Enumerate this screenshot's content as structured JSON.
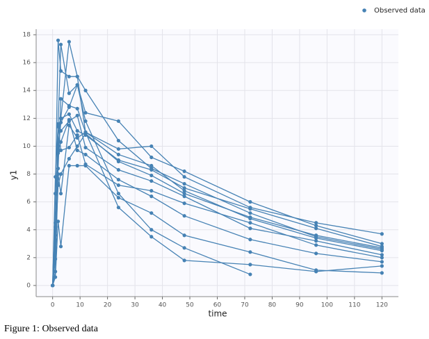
{
  "chart_data": {
    "type": "line",
    "x_label": "time",
    "y_label": "y1",
    "x": [
      0,
      1,
      2,
      3,
      6,
      9,
      12,
      24,
      36,
      48,
      72,
      96,
      120
    ],
    "series": [
      {
        "name": "Observed data",
        "color": "#4682b4",
        "subjects": [
          [
            0,
            6.6,
            17.6,
            15.4,
            15,
            15,
            14,
            10.4,
            8.4,
            7.3,
            5.2,
            3.5,
            2.6
          ],
          [
            0,
            2.7,
            11.6,
            17.3,
            13.8,
            14.4,
            12.4,
            11.8,
            9.2,
            8.2,
            6,
            4.3,
            3
          ],
          [
            0,
            4.5,
            9.8,
            12,
            17.5,
            15,
            11,
            9.8,
            10,
            7.8,
            5.6,
            4.5,
            3.7
          ],
          [
            0,
            3.3,
            8.4,
            13.4,
            12.9,
            12.7,
            11,
            9.4,
            8.6,
            6.8,
            4.8,
            3.4,
            2.5
          ],
          [
            0,
            1.9,
            11.4,
            11.1,
            11.8,
            12.2,
            9.9,
            8.3,
            7.5,
            6.4,
            4.1,
            3.2,
            2.2
          ],
          [
            0,
            7.8,
            11.5,
            9.7,
            9.9,
            10.8,
            8.7,
            7.2,
            6.8,
            5.9,
            4.5,
            2.9,
            2
          ],
          [
            0,
            0.6,
            4.6,
            2.8,
            8.6,
            8.6,
            8.6,
            6.3,
            5.2,
            3.6,
            2.4,
            1.1,
            0.9
          ],
          [
            0,
            1,
            8,
            6.6,
            11.5,
            10.6,
            11,
            5.6,
            3.5,
            1.8,
            1.5,
            1,
            1.4
          ],
          [
            0,
            6.6,
            9.5,
            11.7,
            12.8,
            14.4,
            11.8,
            6.6,
            4,
            2.7,
            0.8,
            null,
            null
          ],
          [
            0,
            2.7,
            7.2,
            8,
            9.1,
            10,
            10.9,
            8.9,
            7.9,
            6.6,
            4.9,
            3.6,
            2.7
          ],
          [
            0,
            3.6,
            10,
            12,
            12.3,
            11.1,
            10.8,
            9,
            8.3,
            7,
            5.5,
            4.1,
            2.8
          ],
          [
            0,
            4.2,
            9.6,
            10.3,
            11.9,
            9.7,
            9.4,
            7.6,
            6.4,
            5,
            3.3,
            2.3,
            1.7
          ]
        ]
      }
    ],
    "xlim": [
      -6,
      126
    ],
    "ylim": [
      -0.8,
      18.4
    ],
    "xticks": [
      0,
      10,
      20,
      30,
      40,
      50,
      60,
      70,
      80,
      90,
      100,
      110,
      120
    ],
    "yticks": [
      0,
      2,
      4,
      6,
      8,
      10,
      12,
      14,
      16,
      18
    ],
    "grid": true
  },
  "caption": "Figure 1: Observed data"
}
